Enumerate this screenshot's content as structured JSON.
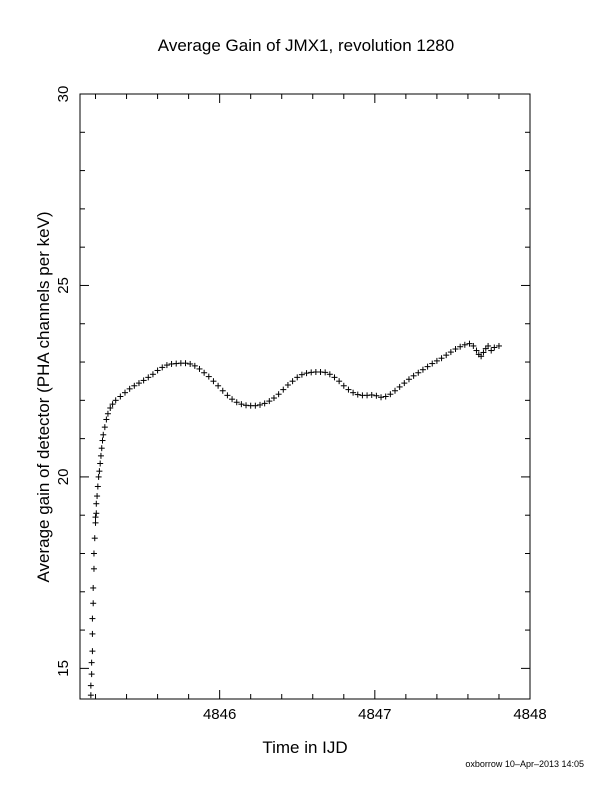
{
  "chart_data": {
    "type": "scatter",
    "title": "Average Gain of JMX1, revolution 1280",
    "xlabel": "Time in IJD",
    "ylabel": "Average gain of detector (PHA channels per keV)",
    "xlim": [
      4845.1,
      4848.0
    ],
    "ylim": [
      14.2,
      30
    ],
    "x_ticks": [
      4846,
      4847,
      4848
    ],
    "y_ticks": [
      15,
      20,
      25,
      30
    ],
    "grid": false,
    "legend": "none",
    "marker": "+",
    "points": [
      [
        4845.17,
        14.3
      ],
      [
        4845.17,
        14.55
      ],
      [
        4845.175,
        14.85
      ],
      [
        4845.175,
        15.15
      ],
      [
        4845.18,
        15.45
      ],
      [
        4845.18,
        15.9
      ],
      [
        4845.18,
        16.3
      ],
      [
        4845.185,
        16.7
      ],
      [
        4845.185,
        17.1
      ],
      [
        4845.19,
        17.6
      ],
      [
        4845.19,
        18.0
      ],
      [
        4845.195,
        18.4
      ],
      [
        4845.2,
        18.8
      ],
      [
        4845.2,
        18.95
      ],
      [
        4845.205,
        19.05
      ],
      [
        4845.205,
        19.3
      ],
      [
        4845.21,
        19.5
      ],
      [
        4845.215,
        19.75
      ],
      [
        4845.22,
        20.0
      ],
      [
        4845.225,
        20.15
      ],
      [
        4845.23,
        20.35
      ],
      [
        4845.235,
        20.55
      ],
      [
        4845.24,
        20.75
      ],
      [
        4845.245,
        20.95
      ],
      [
        4845.25,
        21.1
      ],
      [
        4845.26,
        21.3
      ],
      [
        4845.27,
        21.5
      ],
      [
        4845.28,
        21.65
      ],
      [
        4845.295,
        21.8
      ],
      [
        4845.31,
        21.9
      ],
      [
        4845.33,
        22.0
      ],
      [
        4845.36,
        22.1
      ],
      [
        4845.39,
        22.2
      ],
      [
        4845.42,
        22.3
      ],
      [
        4845.45,
        22.38
      ],
      [
        4845.48,
        22.45
      ],
      [
        4845.51,
        22.52
      ],
      [
        4845.54,
        22.6
      ],
      [
        4845.57,
        22.68
      ],
      [
        4845.6,
        22.78
      ],
      [
        4845.63,
        22.86
      ],
      [
        4845.66,
        22.92
      ],
      [
        4845.69,
        22.95
      ],
      [
        4845.72,
        22.96
      ],
      [
        4845.75,
        22.97
      ],
      [
        4845.78,
        22.97
      ],
      [
        4845.81,
        22.95
      ],
      [
        4845.84,
        22.9
      ],
      [
        4845.87,
        22.82
      ],
      [
        4845.9,
        22.72
      ],
      [
        4845.93,
        22.62
      ],
      [
        4845.96,
        22.5
      ],
      [
        4845.99,
        22.38
      ],
      [
        4846.02,
        22.25
      ],
      [
        4846.05,
        22.13
      ],
      [
        4846.08,
        22.03
      ],
      [
        4846.11,
        21.95
      ],
      [
        4846.14,
        21.9
      ],
      [
        4846.17,
        21.87
      ],
      [
        4846.2,
        21.86
      ],
      [
        4846.23,
        21.86
      ],
      [
        4846.26,
        21.88
      ],
      [
        4846.29,
        21.92
      ],
      [
        4846.32,
        21.98
      ],
      [
        4846.35,
        22.06
      ],
      [
        4846.38,
        22.16
      ],
      [
        4846.41,
        22.28
      ],
      [
        4846.44,
        22.4
      ],
      [
        4846.47,
        22.5
      ],
      [
        4846.5,
        22.6
      ],
      [
        4846.53,
        22.67
      ],
      [
        4846.56,
        22.71
      ],
      [
        4846.59,
        22.73
      ],
      [
        4846.62,
        22.74
      ],
      [
        4846.65,
        22.74
      ],
      [
        4846.68,
        22.73
      ],
      [
        4846.71,
        22.68
      ],
      [
        4846.74,
        22.6
      ],
      [
        4846.77,
        22.5
      ],
      [
        4846.8,
        22.38
      ],
      [
        4846.83,
        22.28
      ],
      [
        4846.86,
        22.2
      ],
      [
        4846.89,
        22.15
      ],
      [
        4846.92,
        22.13
      ],
      [
        4846.95,
        22.13
      ],
      [
        4846.98,
        22.14
      ],
      [
        4847.01,
        22.12
      ],
      [
        4847.04,
        22.08
      ],
      [
        4847.07,
        22.1
      ],
      [
        4847.1,
        22.16
      ],
      [
        4847.13,
        22.25
      ],
      [
        4847.16,
        22.35
      ],
      [
        4847.19,
        22.45
      ],
      [
        4847.22,
        22.55
      ],
      [
        4847.25,
        22.64
      ],
      [
        4847.28,
        22.72
      ],
      [
        4847.31,
        22.8
      ],
      [
        4847.34,
        22.88
      ],
      [
        4847.37,
        22.96
      ],
      [
        4847.4,
        23.03
      ],
      [
        4847.43,
        23.1
      ],
      [
        4847.46,
        23.18
      ],
      [
        4847.49,
        23.26
      ],
      [
        4847.52,
        23.34
      ],
      [
        4847.55,
        23.4
      ],
      [
        4847.58,
        23.45
      ],
      [
        4847.61,
        23.48
      ],
      [
        4847.635,
        23.42
      ],
      [
        4847.655,
        23.3
      ],
      [
        4847.67,
        23.2
      ],
      [
        4847.685,
        23.15
      ],
      [
        4847.7,
        23.25
      ],
      [
        4847.715,
        23.35
      ],
      [
        4847.73,
        23.42
      ],
      [
        4847.75,
        23.3
      ],
      [
        4847.77,
        23.38
      ],
      [
        4847.8,
        23.42
      ]
    ]
  },
  "footer": {
    "note": "oxborrow 10–Apr–2013 14:05"
  }
}
